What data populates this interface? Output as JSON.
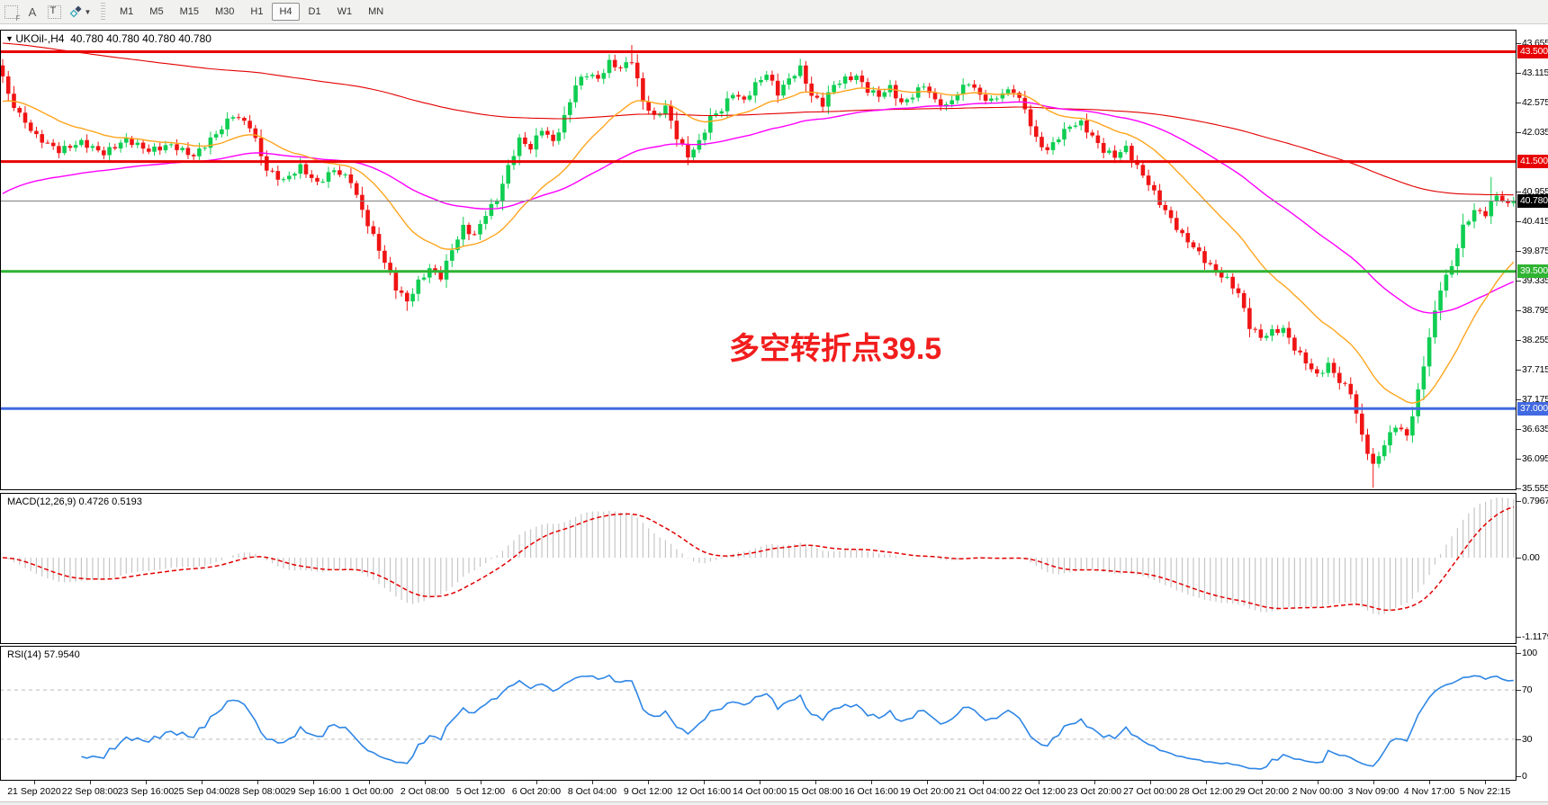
{
  "toolbar": {
    "tools": [
      {
        "name": "snap-grid",
        "label": "F"
      },
      {
        "name": "text-annotation",
        "label": "A"
      },
      {
        "name": "text-label",
        "label": "T"
      },
      {
        "name": "arrange-arrows",
        "label": "✦"
      }
    ],
    "timeframes": [
      {
        "label": "M1",
        "active": false
      },
      {
        "label": "M5",
        "active": false
      },
      {
        "label": "M15",
        "active": false
      },
      {
        "label": "M30",
        "active": false
      },
      {
        "label": "H1",
        "active": false
      },
      {
        "label": "H4",
        "active": true
      },
      {
        "label": "D1",
        "active": false
      },
      {
        "label": "W1",
        "active": false
      },
      {
        "label": "MN",
        "active": false
      }
    ]
  },
  "chart": {
    "title_symbol": "UKOil-,H4",
    "title_ohlc": "40.780 40.780 40.780 40.780",
    "annotation": {
      "text": "多空转折点39.5",
      "color": "#f21d1d"
    }
  },
  "chart_data": {
    "type": "candlestick",
    "symbol": "UKOil-",
    "timeframe": "H4",
    "current_ohlc": {
      "open": "40.780",
      "high": "40.780",
      "low": "40.780",
      "close": "40.780"
    },
    "n_bars": 270,
    "y_axis": {
      "min": 35.51,
      "max": 43.9
    },
    "price_ticks": [
      43.655,
      43.115,
      42.575,
      42.035,
      40.955,
      40.415,
      39.875,
      39.335,
      38.795,
      38.255,
      37.715,
      37.175,
      36.635,
      36.095,
      35.555
    ],
    "horizontal_lines": [
      {
        "price": 43.5,
        "color": "#e80000",
        "width": 3,
        "tag": "43.500",
        "tag_bg": "#e80000",
        "role": "resistance"
      },
      {
        "price": 41.5,
        "color": "#e80000",
        "width": 3,
        "tag": "41.500",
        "tag_bg": "#e80000",
        "role": "resistance"
      },
      {
        "price": 40.78,
        "color": "#808080",
        "width": 1,
        "tag": "40.780",
        "tag_bg": "#000000",
        "role": "current-price"
      },
      {
        "price": 39.5,
        "color": "#2eb432",
        "width": 3,
        "tag": "39.500",
        "tag_bg": "#2eb432",
        "role": "pivot"
      },
      {
        "price": 37.0,
        "color": "#4169e1",
        "width": 3,
        "tag": "37.000",
        "tag_bg": "#4169e1",
        "role": "support"
      }
    ],
    "annotation": {
      "text": "多空转折点39.5",
      "price_level": 39.5
    },
    "price_anchors": [
      [
        0,
        43.05
      ],
      [
        1,
        42.7
      ],
      [
        3,
        42.35
      ],
      [
        6,
        41.95
      ],
      [
        10,
        41.7
      ],
      [
        14,
        41.85
      ],
      [
        18,
        41.65
      ],
      [
        22,
        41.9
      ],
      [
        26,
        41.7
      ],
      [
        30,
        41.8
      ],
      [
        34,
        41.6
      ],
      [
        38,
        42.0
      ],
      [
        41,
        42.35
      ],
      [
        44,
        42.15
      ],
      [
        47,
        41.35
      ],
      [
        50,
        41.15
      ],
      [
        53,
        41.4
      ],
      [
        56,
        41.1
      ],
      [
        59,
        41.35
      ],
      [
        62,
        41.15
      ],
      [
        64,
        40.6
      ],
      [
        67,
        39.9
      ],
      [
        70,
        39.2
      ],
      [
        72,
        38.95
      ],
      [
        74,
        39.3
      ],
      [
        76,
        39.55
      ],
      [
        78,
        39.4
      ],
      [
        80,
        39.9
      ],
      [
        82,
        40.3
      ],
      [
        84,
        40.15
      ],
      [
        86,
        40.55
      ],
      [
        88,
        40.8
      ],
      [
        90,
        41.4
      ],
      [
        92,
        41.9
      ],
      [
        94,
        41.75
      ],
      [
        96,
        42.1
      ],
      [
        98,
        41.85
      ],
      [
        100,
        42.3
      ],
      [
        102,
        42.9
      ],
      [
        104,
        43.1
      ],
      [
        106,
        43.0
      ],
      [
        108,
        43.3
      ],
      [
        110,
        43.2
      ],
      [
        112,
        43.35
      ],
      [
        114,
        42.6
      ],
      [
        116,
        42.3
      ],
      [
        118,
        42.5
      ],
      [
        120,
        41.95
      ],
      [
        122,
        41.6
      ],
      [
        124,
        41.85
      ],
      [
        126,
        42.3
      ],
      [
        128,
        42.45
      ],
      [
        130,
        42.75
      ],
      [
        132,
        42.6
      ],
      [
        134,
        42.9
      ],
      [
        136,
        43.1
      ],
      [
        138,
        42.75
      ],
      [
        140,
        43.0
      ],
      [
        142,
        43.2
      ],
      [
        144,
        42.7
      ],
      [
        146,
        42.55
      ],
      [
        148,
        42.9
      ],
      [
        150,
        43.0
      ],
      [
        152,
        43.05
      ],
      [
        154,
        42.8
      ],
      [
        156,
        42.7
      ],
      [
        158,
        42.85
      ],
      [
        160,
        42.55
      ],
      [
        162,
        42.7
      ],
      [
        164,
        42.9
      ],
      [
        166,
        42.6
      ],
      [
        168,
        42.5
      ],
      [
        170,
        42.75
      ],
      [
        172,
        42.95
      ],
      [
        174,
        42.7
      ],
      [
        176,
        42.6
      ],
      [
        178,
        42.75
      ],
      [
        180,
        42.8
      ],
      [
        182,
        42.45
      ],
      [
        184,
        41.9
      ],
      [
        186,
        41.7
      ],
      [
        188,
        41.95
      ],
      [
        190,
        42.15
      ],
      [
        192,
        42.2
      ],
      [
        194,
        41.95
      ],
      [
        196,
        41.7
      ],
      [
        198,
        41.6
      ],
      [
        200,
        41.75
      ],
      [
        202,
        41.4
      ],
      [
        204,
        41.1
      ],
      [
        206,
        40.75
      ],
      [
        208,
        40.45
      ],
      [
        210,
        40.15
      ],
      [
        212,
        39.95
      ],
      [
        214,
        39.7
      ],
      [
        216,
        39.5
      ],
      [
        218,
        39.35
      ],
      [
        220,
        39.1
      ],
      [
        222,
        38.5
      ],
      [
        224,
        38.3
      ],
      [
        226,
        38.4
      ],
      [
        228,
        38.45
      ],
      [
        230,
        38.1
      ],
      [
        232,
        37.85
      ],
      [
        234,
        37.6
      ],
      [
        236,
        37.8
      ],
      [
        238,
        37.5
      ],
      [
        240,
        37.3
      ],
      [
        242,
        36.5
      ],
      [
        244,
        35.95
      ],
      [
        246,
        36.35
      ],
      [
        248,
        36.7
      ],
      [
        250,
        36.5
      ],
      [
        252,
        37.3
      ],
      [
        254,
        38.3
      ],
      [
        256,
        39.2
      ],
      [
        258,
        39.6
      ],
      [
        260,
        40.3
      ],
      [
        262,
        40.6
      ],
      [
        264,
        40.55
      ],
      [
        266,
        40.9
      ],
      [
        268,
        40.7
      ],
      [
        269,
        40.78
      ]
    ],
    "wick_overrides": {
      "72": {
        "low": 38.78
      },
      "112": {
        "high": 43.62
      },
      "244": {
        "low": 35.56
      },
      "265": {
        "high": 41.22
      }
    },
    "moving_averages": [
      {
        "color": "#e30000",
        "alpha": 0.008,
        "init": 43.66,
        "width": 1.1,
        "name": "slow-ma"
      },
      {
        "color": "#ff00ff",
        "alpha": 0.03,
        "init": 40.85,
        "width": 1.4,
        "name": "mid-ma"
      },
      {
        "color": "#ffa51e",
        "alpha": 0.09,
        "init": 42.55,
        "width": 1.4,
        "name": "fast-ma"
      }
    ],
    "colors": {
      "bull": "#0fce52",
      "bear": "#f01414",
      "macd_histogram": "#c6c6c6",
      "macd_signal": "#e30000",
      "rsi_line": "#2e86e5",
      "rsi_levels": "#bbbbbb"
    },
    "x_labels": [
      "21 Sep 2020",
      "22 Sep 08:00",
      "23 Sep 16:00",
      "25 Sep 04:00",
      "28 Sep 08:00",
      "29 Sep 16:00",
      "1 Oct 00:00",
      "2 Oct 08:00",
      "5 Oct 12:00",
      "6 Oct 20:00",
      "8 Oct 04:00",
      "9 Oct 12:00",
      "12 Oct 16:00",
      "14 Oct 00:00",
      "15 Oct 08:00",
      "16 Oct 16:00",
      "19 Oct 20:00",
      "21 Oct 04:00",
      "22 Oct 12:00",
      "23 Oct 20:00",
      "27 Oct 00:00",
      "28 Oct 12:00",
      "29 Oct 20:00",
      "2 Nov 00:00",
      "3 Nov 09:00",
      "4 Nov 17:00",
      "5 Nov 22:15"
    ],
    "indicators": [
      {
        "name": "MACD",
        "label": "MACD(12,26,9)",
        "values": "0.4726 0.5193",
        "axis": [
          {
            "label": "0.7967",
            "value": 0.7967
          },
          {
            "label": "0.00",
            "value": 0
          },
          {
            "label": "-1.1179",
            "value": -1.1179
          }
        ]
      },
      {
        "name": "RSI",
        "label": "RSI(14)",
        "values": "57.9540",
        "axis": [
          {
            "label": "100",
            "value": 100
          },
          {
            "label": "70",
            "value": 70
          },
          {
            "label": "30",
            "value": 30
          },
          {
            "label": "0",
            "value": 0
          }
        ],
        "levels": [
          70,
          30
        ]
      }
    ]
  }
}
